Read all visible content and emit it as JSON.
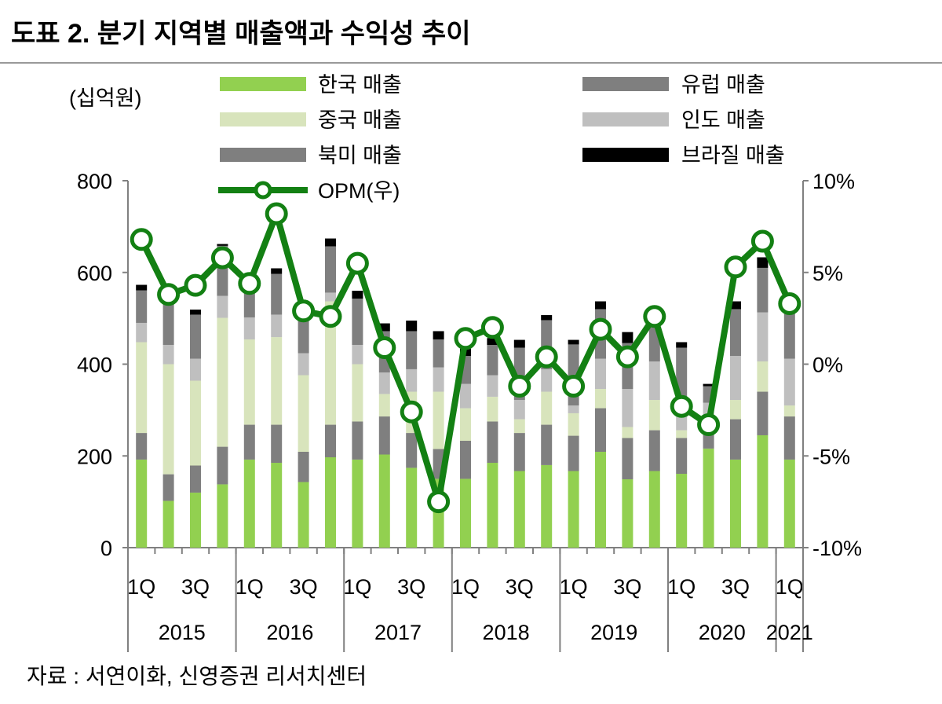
{
  "title": "도표 2. 분기 지역별 매출액과 수익성 추이",
  "source": "자료 : 서연이화, 신영증권 리서치센터",
  "chart_data": {
    "type": "bar",
    "subtype": "stacked bar + line (secondary axis)",
    "unit_label": "(십억원)",
    "quarters": [
      "2015 1Q",
      "2015 2Q",
      "2015 3Q",
      "2015 4Q",
      "2016 1Q",
      "2016 2Q",
      "2016 3Q",
      "2016 4Q",
      "2017 1Q",
      "2017 2Q",
      "2017 3Q",
      "2017 4Q",
      "2018 1Q",
      "2018 2Q",
      "2018 3Q",
      "2018 4Q",
      "2019 1Q",
      "2019 2Q",
      "2019 3Q",
      "2019 4Q",
      "2020 1Q",
      "2020 2Q",
      "2020 3Q",
      "2020 4Q",
      "2021 1Q"
    ],
    "quarter_tick_labels": [
      "1Q",
      "",
      "3Q",
      "",
      "1Q",
      "",
      "3Q",
      "",
      "1Q",
      "",
      "3Q",
      "",
      "1Q",
      "",
      "3Q",
      "",
      "1Q",
      "",
      "3Q",
      "",
      "1Q",
      "",
      "3Q",
      "",
      "1Q"
    ],
    "years": [
      {
        "label": "2015",
        "quarters": 4
      },
      {
        "label": "2016",
        "quarters": 4
      },
      {
        "label": "2017",
        "quarters": 4
      },
      {
        "label": "2018",
        "quarters": 4
      },
      {
        "label": "2019",
        "quarters": 4
      },
      {
        "label": "2020",
        "quarters": 4
      },
      {
        "label": "2021",
        "quarters": 1
      }
    ],
    "left_axis": {
      "ylim": [
        0,
        800
      ],
      "ticks": [
        "0",
        "200",
        "400",
        "600",
        "800"
      ]
    },
    "right_axis": {
      "ylim": [
        -10,
        10
      ],
      "ticks": [
        "-10%",
        "-5%",
        "0%",
        "5%",
        "10%"
      ]
    },
    "series": [
      {
        "name": "한국 매출",
        "color": "#92d050",
        "values": [
          192,
          102,
          120,
          138,
          192,
          185,
          143,
          197,
          192,
          203,
          174,
          150,
          150,
          185,
          167,
          180,
          167,
          209,
          149,
          167,
          161,
          216,
          192,
          245,
          192
        ]
      },
      {
        "name": "북미 매출",
        "color": "#7f7f7f",
        "values": [
          58,
          58,
          59,
          82,
          76,
          83,
          66,
          71,
          83,
          83,
          76,
          65,
          83,
          90,
          83,
          88,
          77,
          95,
          90,
          89,
          78,
          50,
          88,
          95,
          94
        ]
      },
      {
        "name": "중국 매출",
        "color": "#d8e4bc",
        "values": [
          198,
          240,
          185,
          281,
          186,
          191,
          167,
          269,
          125,
          49,
          90,
          125,
          71,
          54,
          30,
          72,
          49,
          42,
          24,
          66,
          17,
          10,
          42,
          66,
          24
        ]
      },
      {
        "name": "인도 매출",
        "color": "#bfbfbf",
        "values": [
          42,
          42,
          48,
          48,
          48,
          49,
          48,
          19,
          42,
          47,
          49,
          53,
          53,
          47,
          42,
          49,
          17,
          66,
          83,
          84,
          60,
          40,
          96,
          107,
          102
        ]
      },
      {
        "name": "유럽 매출",
        "color": "#7f7f7f",
        "values": [
          71,
          92,
          96,
          109,
          65,
          89,
          92,
          101,
          101,
          90,
          83,
          61,
          61,
          66,
          114,
          107,
          133,
          108,
          100,
          94,
          120,
          36,
          102,
          97,
          105
        ]
      },
      {
        "name": "브라질 매출",
        "color": "#000000",
        "values": [
          12,
          5,
          11,
          4,
          10,
          12,
          10,
          17,
          17,
          17,
          23,
          18,
          16,
          15,
          17,
          11,
          10,
          17,
          24,
          5,
          12,
          5,
          17,
          23,
          0
        ]
      }
    ],
    "line": {
      "name": "OPM(우)",
      "color": "#138013",
      "values": [
        6.8,
        3.8,
        4.3,
        5.8,
        4.4,
        8.2,
        2.9,
        2.6,
        5.5,
        0.9,
        -2.6,
        -7.5,
        1.4,
        2.0,
        -1.2,
        0.4,
        -1.2,
        1.9,
        0.4,
        2.6,
        -2.3,
        -3.3,
        5.3,
        6.7,
        3.3
      ]
    },
    "legend": {
      "left": [
        "한국 매출",
        "중국 매출",
        "북미 매출"
      ],
      "right": [
        "유럽 매출",
        "인도 매출",
        "브라질 매출"
      ],
      "line": "OPM(우)"
    }
  }
}
